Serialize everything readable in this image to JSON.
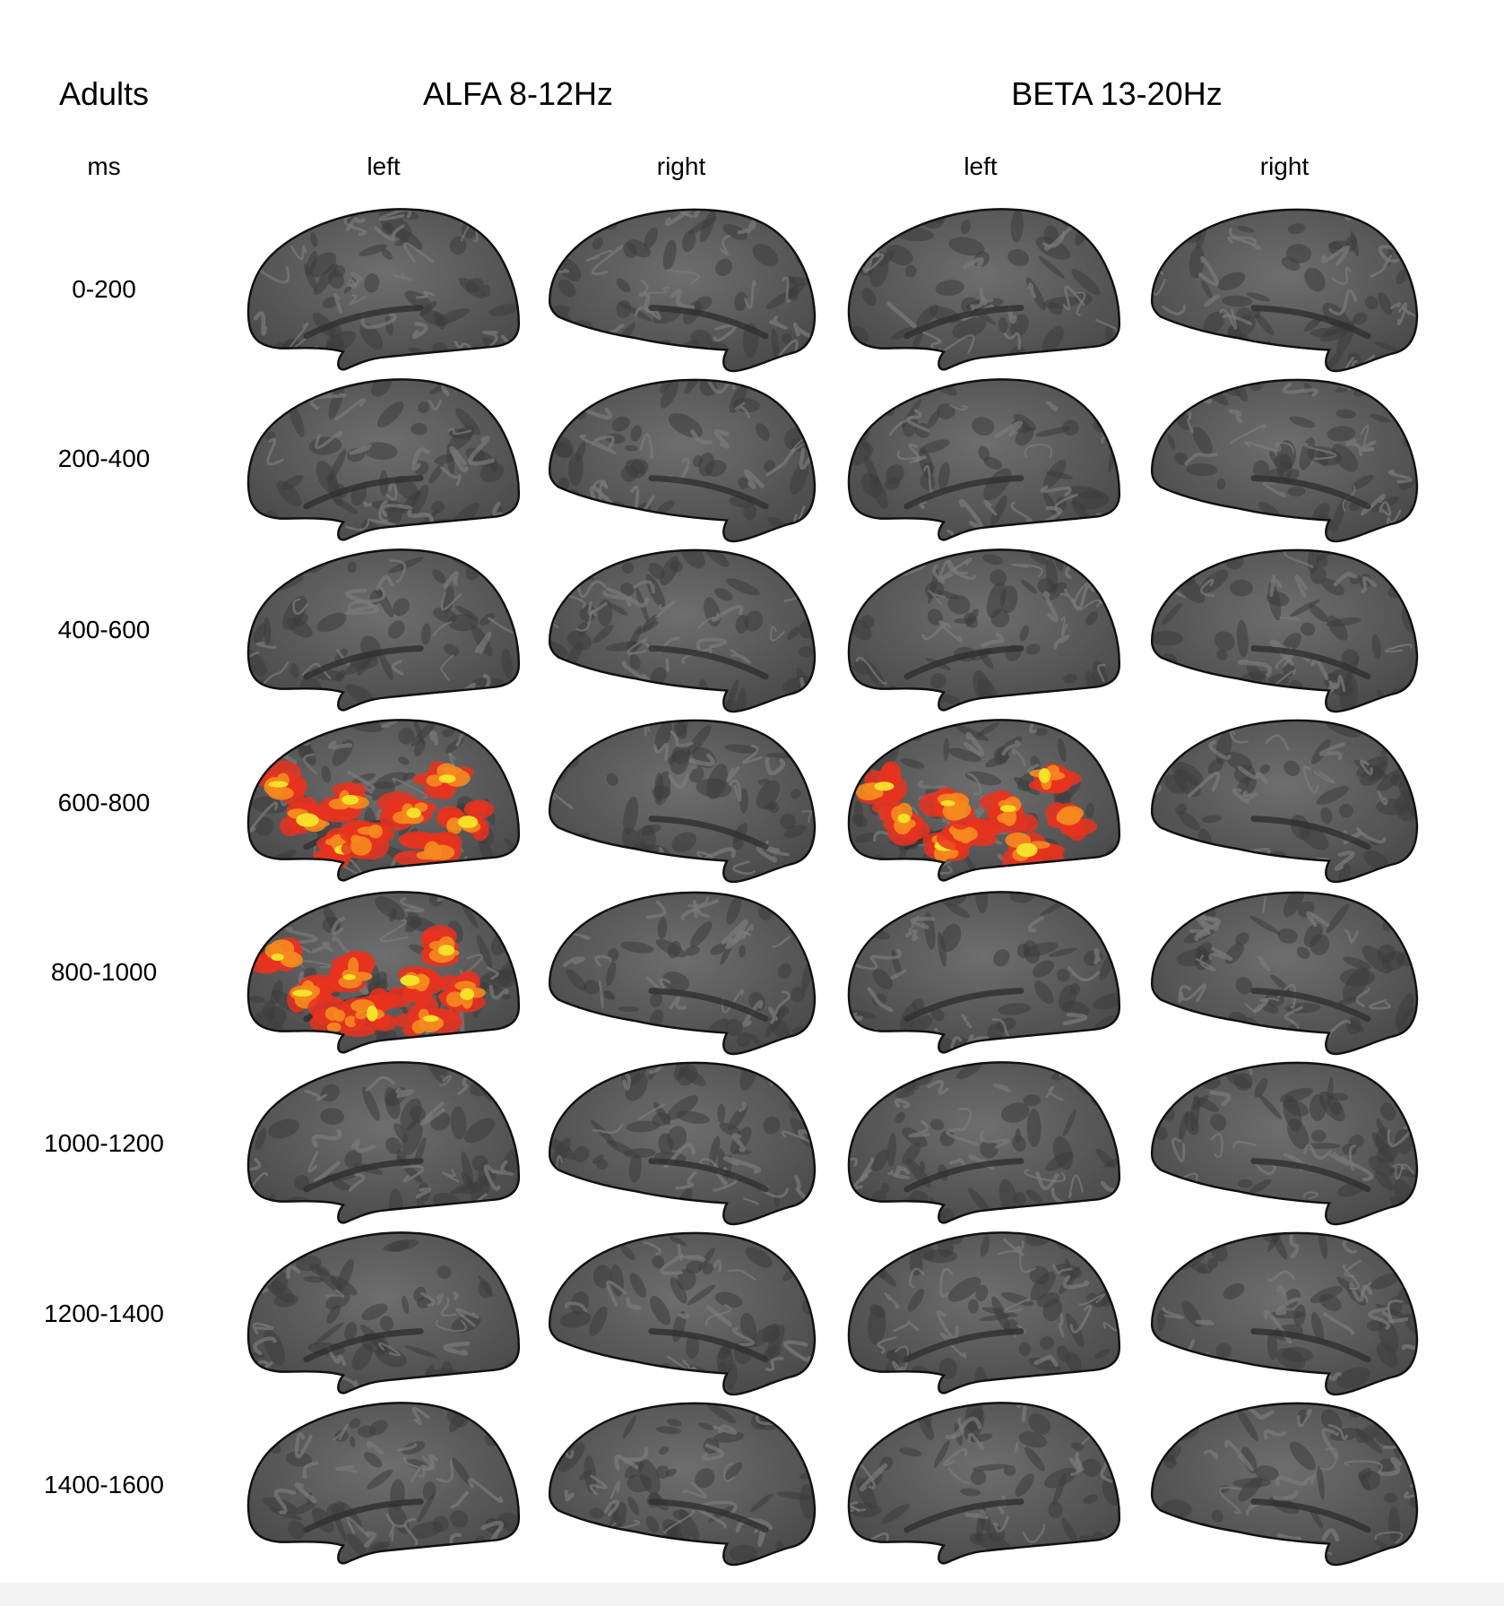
{
  "figure": {
    "group_label": "Adults",
    "time_unit_label": "ms",
    "bands": [
      {
        "label": "ALFA 8-12Hz",
        "hemispheres": [
          "left",
          "right"
        ]
      },
      {
        "label": "BETA 13-20Hz",
        "hemispheres": [
          "left",
          "right"
        ]
      }
    ],
    "time_windows": [
      "0-200",
      "200-400",
      "400-600",
      "600-800",
      "800-1000",
      "1000-1200",
      "1200-1400",
      "1400-1600"
    ],
    "colors": {
      "surface_dark": "#4a4a4a",
      "surface_light": "#6e6e6e",
      "activation_red": "#e8321e",
      "activation_orange": "#f58a1e",
      "activation_yellow": "#f5e62a"
    },
    "activations": [
      {
        "band": "ALFA 8-12Hz",
        "hemisphere": "left",
        "time_window": "600-800"
      },
      {
        "band": "ALFA 8-12Hz",
        "hemisphere": "left",
        "time_window": "800-1000"
      },
      {
        "band": "BETA 13-20Hz",
        "hemisphere": "left",
        "time_window": "600-800"
      }
    ]
  }
}
